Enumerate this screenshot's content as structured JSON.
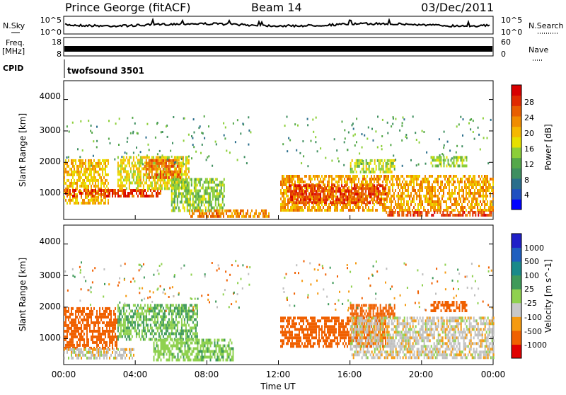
{
  "header": {
    "station": "Prince George (fitACF)",
    "beam": "Beam 14",
    "date": "03/Dec/2011"
  },
  "side_labels": {
    "nsky": "N.Sky",
    "freq_top": "Freq.",
    "freq_unit": "[MHz]",
    "cpid": "CPID",
    "nsearch": "N.Search",
    "nave": "Nave"
  },
  "cpid_value": "twofsound 3501",
  "small_axes": {
    "noise_left": [
      "10^5",
      "10^0"
    ],
    "noise_right": [
      "10^5",
      "10^0"
    ],
    "freq_left": [
      "18",
      "8"
    ],
    "nave_right": [
      "60",
      "0"
    ]
  },
  "colors": {
    "power": [
      "#0000ff",
      "#1f4fc0",
      "#2a6e8c",
      "#3f8f60",
      "#55a84a",
      "#8ccf38",
      "#e6e000",
      "#f5b800",
      "#f08c00",
      "#e85e00",
      "#e02a00",
      "#d80000"
    ],
    "velocity": [
      "#e00000",
      "#f06000",
      "#f59a10",
      "#c8c8c8",
      "#8fd14f",
      "#3f9a5a",
      "#1a8a8a",
      "#1f5fbf",
      "#2020c8"
    ],
    "ground_scatter": "#bebebe"
  },
  "chart_data": [
    {
      "type": "heatmap",
      "title": "Power",
      "ylabel": "Slant Range [km]",
      "xlabel": "",
      "ylim": [
        180,
        4600
      ],
      "yticks": [
        "1000",
        "2000",
        "3000",
        "4000"
      ],
      "x_range_hours": [
        0,
        24
      ],
      "colorbar": {
        "label": "Power [dB]",
        "min": 0,
        "max": 32,
        "ticks": [
          "4",
          "8",
          "12",
          "16",
          "20",
          "24",
          "28"
        ]
      },
      "bands": [
        {
          "t0": 0.0,
          "t1": 2.5,
          "r0": 700,
          "r1": 2100,
          "level": 20
        },
        {
          "t0": 0.0,
          "t1": 5.5,
          "r0": 900,
          "r1": 1150,
          "level": 28
        },
        {
          "t0": 3.0,
          "t1": 7.0,
          "r0": 1200,
          "r1": 2200,
          "level": 18
        },
        {
          "t0": 4.5,
          "t1": 6.5,
          "r0": 1500,
          "r1": 2100,
          "level": 26
        },
        {
          "t0": 6.0,
          "t1": 9.0,
          "r0": 500,
          "r1": 1500,
          "level": 14
        },
        {
          "t0": 7.0,
          "t1": 11.5,
          "r0": 300,
          "r1": 500,
          "level": 24
        },
        {
          "t0": 12.1,
          "t1": 24.0,
          "r0": 500,
          "r1": 1600,
          "level": 22
        },
        {
          "t0": 12.5,
          "t1": 18.0,
          "r0": 700,
          "r1": 1300,
          "level": 28
        },
        {
          "t0": 16.0,
          "t1": 18.5,
          "r0": 1700,
          "r1": 2100,
          "level": 16
        },
        {
          "t0": 18.0,
          "t1": 24.0,
          "r0": 350,
          "r1": 450,
          "level": 28
        },
        {
          "t0": 20.5,
          "t1": 22.5,
          "r0": 1900,
          "r1": 2200,
          "level": 14
        }
      ]
    },
    {
      "type": "heatmap",
      "title": "Velocity",
      "ylabel": "Slant Range [km]",
      "xlabel": "Time UT",
      "ylim": [
        180,
        4600
      ],
      "yticks": [
        "1000",
        "2000",
        "3000",
        "4000"
      ],
      "xticks": [
        "00:00",
        "04:00",
        "08:00",
        "12:00",
        "16:00",
        "20:00",
        "00:00"
      ],
      "colorbar": {
        "label": "Velocity [m s^-1]",
        "ticks": [
          "1000",
          "500",
          "100",
          "25",
          "-25",
          "-100",
          "-500",
          "-1000"
        ]
      },
      "bands": [
        {
          "t0": 0.0,
          "t1": 3.0,
          "r0": 700,
          "r1": 2000,
          "vel": -250
        },
        {
          "t0": 0.0,
          "t1": 4.0,
          "r0": 400,
          "r1": 700,
          "vel": 0
        },
        {
          "t0": 3.0,
          "t1": 7.5,
          "r0": 1000,
          "r1": 2100,
          "vel": 200
        },
        {
          "t0": 5.0,
          "t1": 9.5,
          "r0": 300,
          "r1": 1000,
          "vel": 150
        },
        {
          "t0": 12.1,
          "t1": 18.0,
          "r0": 800,
          "r1": 1700,
          "vel": -250
        },
        {
          "t0": 16.0,
          "t1": 18.5,
          "r0": 1700,
          "r1": 2100,
          "vel": -300
        },
        {
          "t0": 16.0,
          "t1": 24.0,
          "r0": 400,
          "r1": 1700,
          "vel": 0
        },
        {
          "t0": 20.5,
          "t1": 22.5,
          "r0": 1900,
          "r1": 2200,
          "vel": -300
        }
      ]
    }
  ]
}
